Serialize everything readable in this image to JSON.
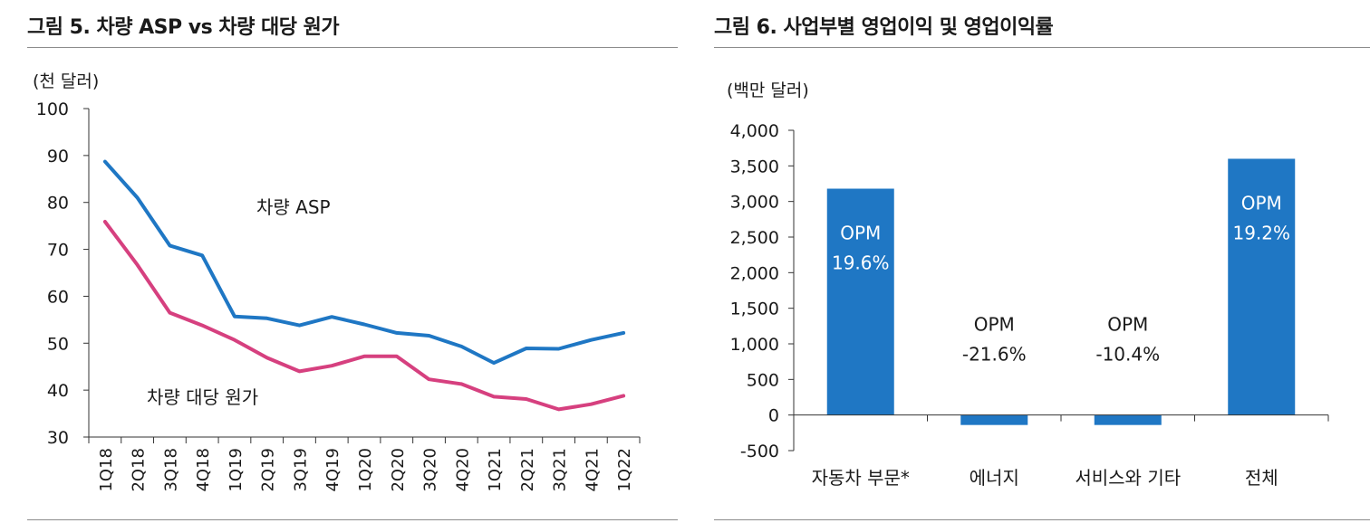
{
  "figure5": {
    "title": "그림 5. 차량 ASP vs 차량 대당 원가",
    "chart_data": {
      "type": "line",
      "unit_label": "(천 달러)",
      "categories": [
        "1Q18",
        "2Q18",
        "3Q18",
        "4Q18",
        "1Q19",
        "2Q19",
        "3Q19",
        "4Q19",
        "1Q20",
        "2Q20",
        "3Q20",
        "4Q20",
        "1Q21",
        "2Q21",
        "3Q21",
        "4Q21",
        "1Q22"
      ],
      "yticks": [
        "100",
        "90",
        "80",
        "70",
        "60",
        "50",
        "40",
        "30"
      ],
      "ylim": [
        30,
        100
      ],
      "series": [
        {
          "name": "차량 ASP",
          "color": "#1f77c4",
          "values": [
            88.7,
            81.0,
            70.8,
            68.7,
            55.7,
            55.3,
            53.8,
            55.6,
            54.0,
            52.2,
            51.6,
            49.3,
            45.8,
            48.9,
            48.8,
            50.7,
            52.2
          ]
        },
        {
          "name": "차량 대당 원가",
          "color": "#d6407f",
          "values": [
            75.9,
            66.7,
            56.5,
            53.8,
            50.7,
            46.9,
            44.0,
            45.2,
            47.2,
            47.2,
            42.3,
            41.3,
            38.6,
            38.1,
            35.9,
            37.0,
            38.8
          ]
        }
      ]
    }
  },
  "figure6": {
    "title": "그림 6. 사업부별 영업이익 및 영업이익률",
    "chart_data": {
      "type": "bar",
      "unit_label": "(백만 달러)",
      "categories": [
        "자동차 부문*",
        "에너지",
        "서비스와 기타",
        "전체"
      ],
      "values": [
        3180,
        -140,
        -140,
        3600
      ],
      "opm_labels": [
        {
          "title": "OPM",
          "value": "19.6%"
        },
        {
          "title": "OPM",
          "value": "-21.6%"
        },
        {
          "title": "OPM",
          "value": "-10.4%"
        },
        {
          "title": "OPM",
          "value": "19.2%"
        }
      ],
      "yticks": [
        "4,000",
        "3,500",
        "3,000",
        "2,500",
        "2,000",
        "1,500",
        "1,000",
        "500",
        "0",
        "-500"
      ],
      "ylim": [
        -500,
        4000
      ],
      "bar_color": "#1f77c4"
    }
  }
}
